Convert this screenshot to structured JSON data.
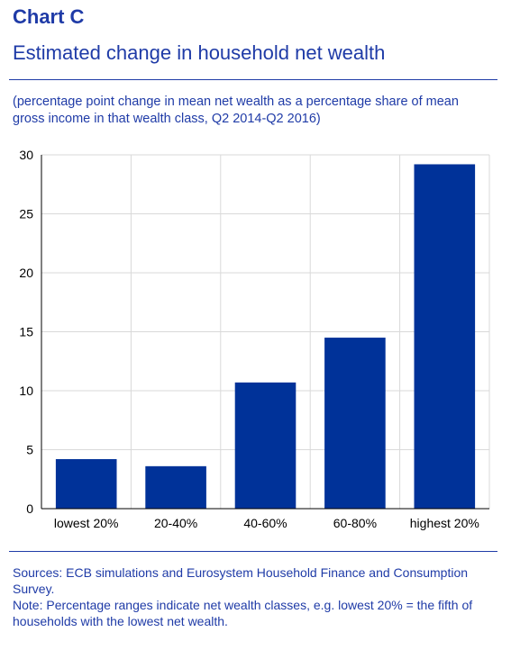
{
  "header": {
    "label": "Chart C",
    "title": "Estimated change in household net wealth",
    "subtitle": "(percentage point change in mean net wealth as a percentage share of mean gross income in that wealth class, Q2 2014-Q2 2016)"
  },
  "footer": {
    "sources": "Sources: ECB simulations and Eurosystem Household Finance and Consumption Survey.",
    "note": "Note: Percentage ranges indicate net wealth classes, e.g. lowest 20% = the fifth of households with the lowest net wealth."
  },
  "colors": {
    "bar": "#003299",
    "text": "#1f3ba7",
    "grid": "#d9d9d9",
    "axis": "#000000"
  },
  "chart_data": {
    "type": "bar",
    "categories": [
      "lowest 20%",
      "20-40%",
      "40-60%",
      "60-80%",
      "highest 20%"
    ],
    "values": [
      4.2,
      3.6,
      10.7,
      14.5,
      29.2
    ],
    "title": "Estimated change in household net wealth",
    "xlabel": "",
    "ylabel": "",
    "ylim": [
      0,
      30
    ],
    "yticks": [
      0,
      5,
      10,
      15,
      20,
      25,
      30
    ],
    "grid": true,
    "legend": "none"
  }
}
